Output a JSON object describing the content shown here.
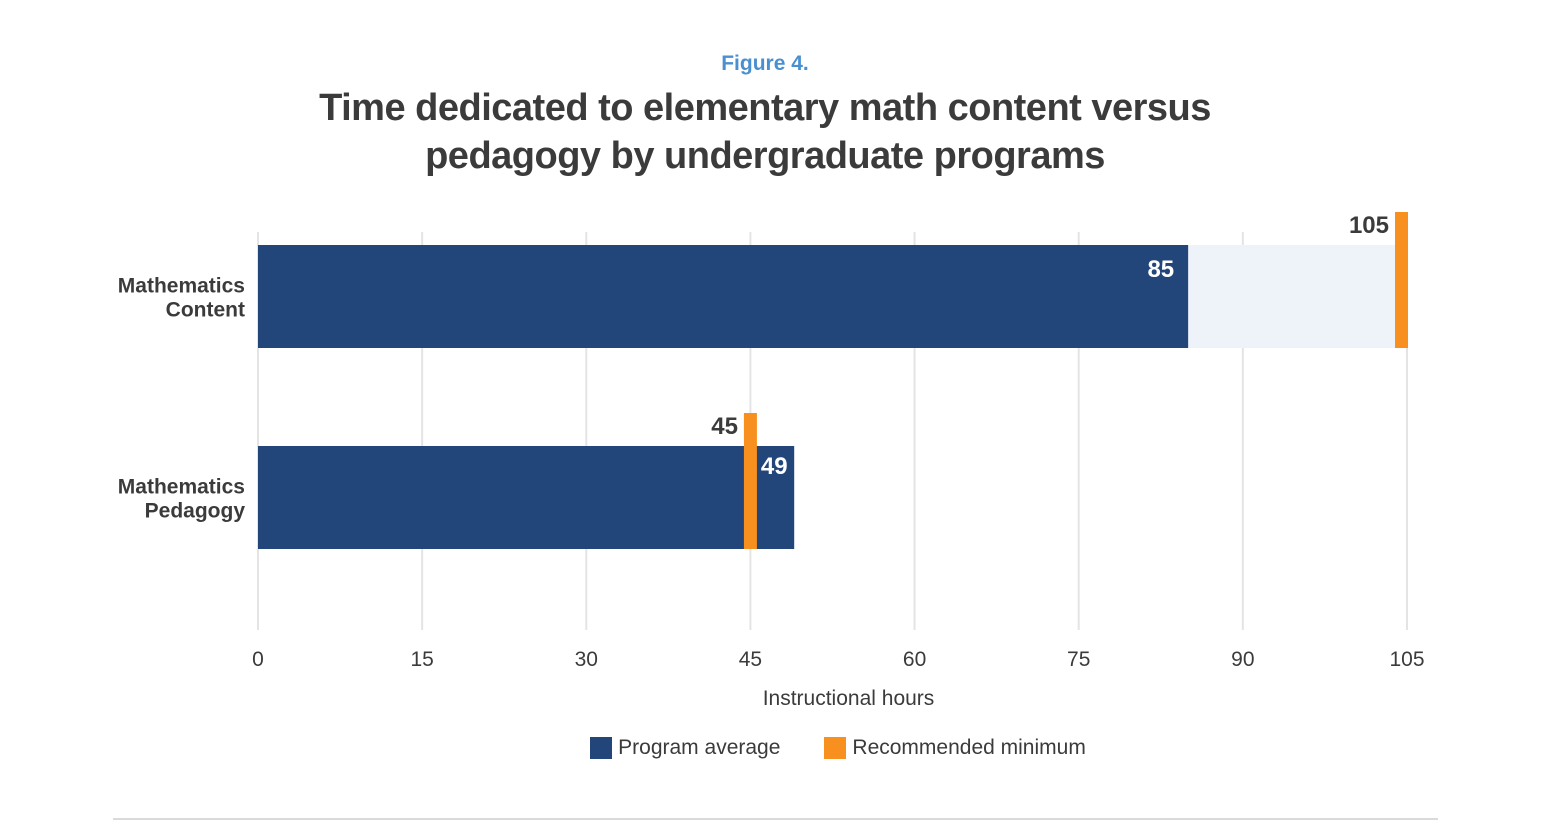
{
  "figure": {
    "label": "Figure 4.",
    "title_line1": "Time dedicated to elementary math content versus",
    "title_line2": "pedagogy by undergraduate programs"
  },
  "chart_data": {
    "type": "bar",
    "orientation": "horizontal",
    "categories": [
      "Mathematics Content",
      "Mathematics Pedagogy"
    ],
    "category_lines": [
      [
        "Mathematics",
        "Content"
      ],
      [
        "Mathematics",
        "Pedagogy"
      ]
    ],
    "series": [
      {
        "name": "Program average",
        "values": [
          85,
          49
        ]
      },
      {
        "name": "Recommended minimum",
        "values": [
          105,
          45
        ]
      }
    ],
    "xlabel": "Instructional hours",
    "ylabel": "",
    "xlim": [
      0,
      105
    ],
    "xticks": [
      0,
      15,
      30,
      45,
      60,
      75,
      90,
      105
    ],
    "grid": true,
    "legend_position": "bottom-center"
  },
  "colors": {
    "program_average": "#23467a",
    "recommended_minimum": "#f7901e",
    "gap_fill": "#eef2f9",
    "grid": "#e4e4e4",
    "text_dark": "#3b3b3b",
    "figure_label": "#4a8fcf"
  }
}
